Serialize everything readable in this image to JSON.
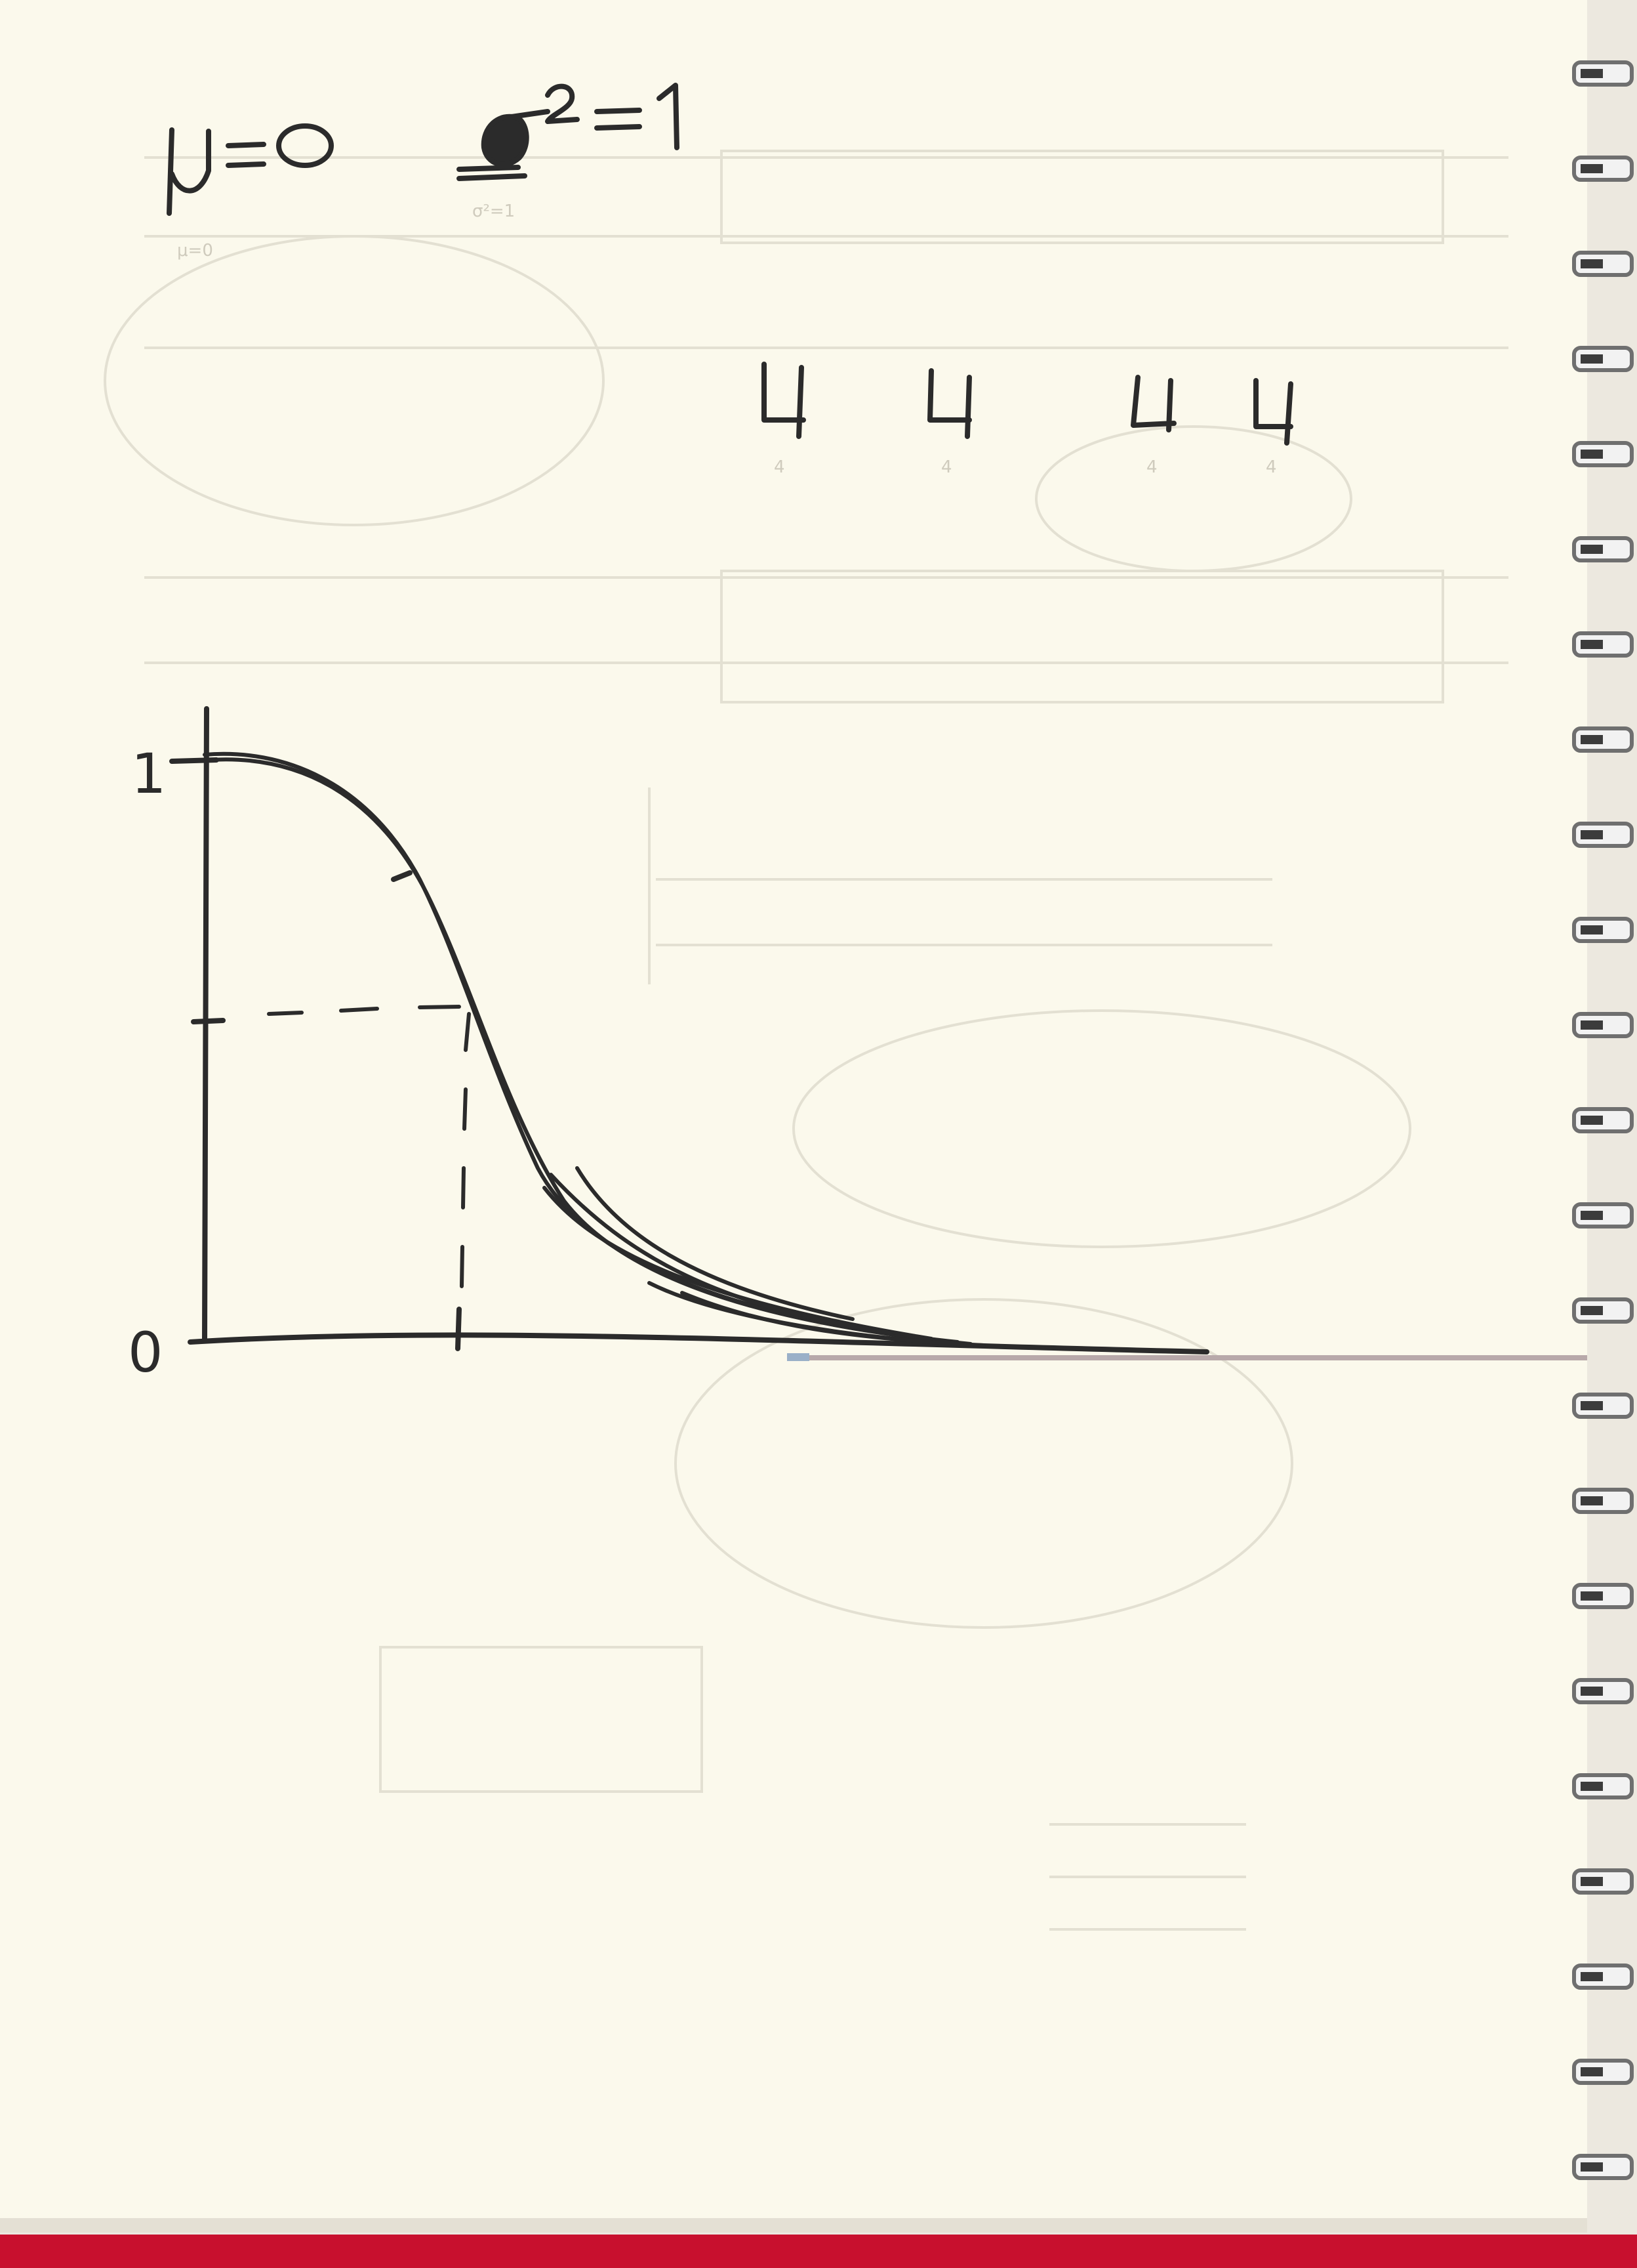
{
  "notes": {
    "mu_label": "μ=0",
    "sigma_label": "σ²=1",
    "fours": [
      "4",
      "4",
      "4",
      "4"
    ]
  },
  "graph": {
    "y_top_label": "1",
    "origin_label": "0",
    "curve": {
      "type": "sigmoid-decay",
      "y_max": 1,
      "y_mid": 0.5,
      "y_min": 0
    }
  },
  "colors": {
    "paper": "#fbf9ec",
    "ink": "#2b2b2b",
    "faint": "#d9d6c8",
    "binding": "#8a8a8a",
    "edge": "#c8102e"
  }
}
